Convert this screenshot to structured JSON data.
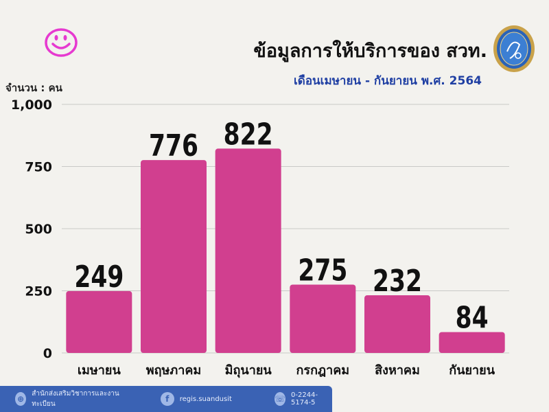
{
  "header": {
    "title": "ข้อมูลการให้บริการของ สวท.",
    "subtitle": "เดือนเมษายน - กันยายน พ.ศ. 2564",
    "unit_label": "จำนวน : คน"
  },
  "icons": {
    "smiley": "smiley-face-icon",
    "logo": "university-seal-logo"
  },
  "colors": {
    "bar": "#d13f8f",
    "smiley": "#e63ad0",
    "subtitle": "#1f3fa3",
    "footer": "#3a62b4"
  },
  "chart_data": {
    "type": "bar",
    "categories": [
      "เมษายน",
      "พฤษภาคม",
      "มิถุนายน",
      "กรกฎาคม",
      "สิงหาคม",
      "กันยายน"
    ],
    "values": [
      249,
      776,
      822,
      275,
      232,
      84
    ],
    "data_labels": [
      "249",
      "776",
      "822",
      "275",
      "232",
      "84"
    ],
    "y_ticks": [
      0,
      250,
      500,
      750,
      1000
    ],
    "y_tick_labels": [
      "0",
      "250",
      "500",
      "750",
      "1,000"
    ],
    "ylim": [
      0,
      1000
    ],
    "grid": true
  },
  "footer": {
    "items": [
      {
        "icon": "globe-icon",
        "text": "สำนักส่งเสริมวิชาการและงานทะเบียน"
      },
      {
        "icon": "facebook-icon",
        "text": "regis.suandusit"
      },
      {
        "icon": "phone-icon",
        "text": "0-2244-5174-5"
      }
    ]
  }
}
